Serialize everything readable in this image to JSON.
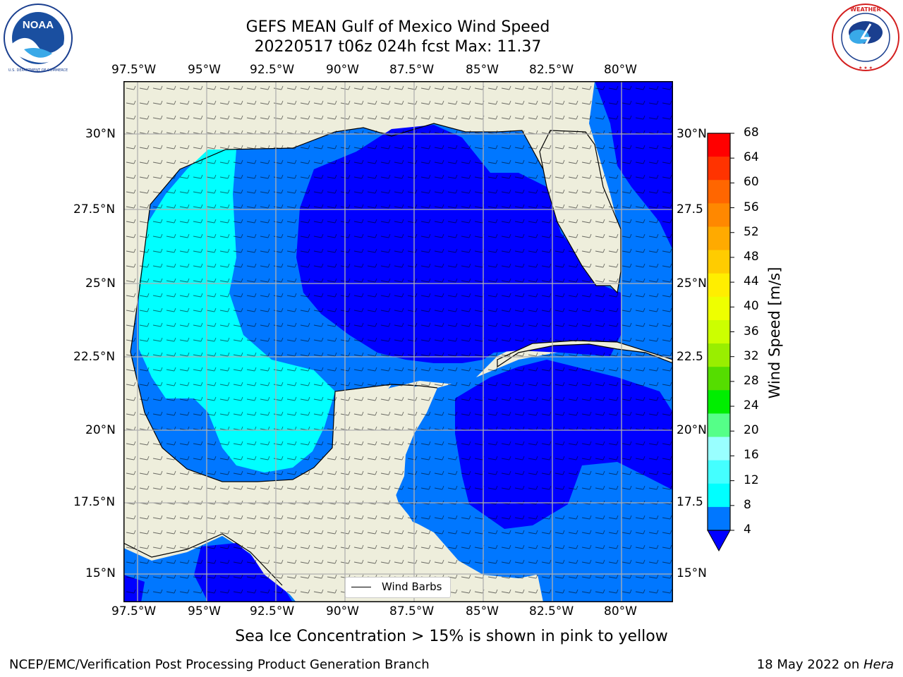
{
  "title": {
    "line1": "GEFS MEAN Gulf of Mexico Wind Speed",
    "line2": "20220517 t06z 024h fcst   Max: 11.37"
  },
  "logos": {
    "left": {
      "icon": "noaa-logo",
      "text": "NOAA",
      "ring_text": "NATIONAL OCEANIC AND ATMOSPHERIC ADMINISTRATION · U.S. DEPARTMENT OF COMMERCE"
    },
    "right": {
      "icon": "nws-logo",
      "ring_text": "NATIONAL WEATHER SERVICE"
    }
  },
  "map": {
    "projection": "plate carree",
    "lon_range": [
      -98.5,
      -78.6
    ],
    "lat_range": [
      14.0,
      31.7
    ],
    "land_color": "#eeeedc",
    "grid": true,
    "grid_color": "#b0b0b0",
    "lon_ticks": [
      "97.5°W",
      "95°W",
      "92.5°W",
      "90°W",
      "87.5°W",
      "85°W",
      "82.5°W",
      "80°W"
    ],
    "lat_ticks_left": [
      "30°N",
      "27.5°N",
      "25°N",
      "22.5°N",
      "20°N",
      "17.5°N",
      "15°N"
    ],
    "lat_ticks_right": [
      "30°N",
      "27.5",
      "25°N",
      "22.5",
      "20°N",
      "17.5",
      "15°N"
    ],
    "legend": {
      "label": "Wind Barbs",
      "placement": "bottom-center"
    }
  },
  "colorbar": {
    "title": "Wind Speed [m/s]",
    "labels": [
      "68",
      "64",
      "60",
      "56",
      "52",
      "48",
      "44",
      "40",
      "36",
      "32",
      "28",
      "24",
      "20",
      "16",
      "12",
      "8",
      "4"
    ],
    "colors": [
      "#ff0000",
      "#ff3300",
      "#ff6600",
      "#ff8800",
      "#ffaa00",
      "#ffcc00",
      "#ffee00",
      "#eeff00",
      "#ccff00",
      "#99ee00",
      "#55dd00",
      "#00ee00",
      "#55ff88",
      "#99ffff",
      "#44ffff",
      "#00ffff",
      "#0077ff"
    ],
    "extend_color": "#0000ff"
  },
  "chart_data": {
    "type": "heatmap",
    "title": "GEFS MEAN Gulf of Mexico Wind Speed",
    "units": "m/s",
    "max": 11.37,
    "regions": [
      {
        "level": "4-8 m/s",
        "color": "#0077ff"
      },
      {
        "level": "8-12 m/s",
        "color": "#00ffff"
      },
      {
        "level": "<4 m/s",
        "color": "#0000ff"
      }
    ]
  },
  "caption": "Sea Ice Concentration > 15% is shown in pink to yellow",
  "footer": {
    "left": "NCEP/EMC/Verification Post Processing Product Generation Branch",
    "right_prefix": "18 May 2022 on ",
    "right_host": "Hera"
  }
}
